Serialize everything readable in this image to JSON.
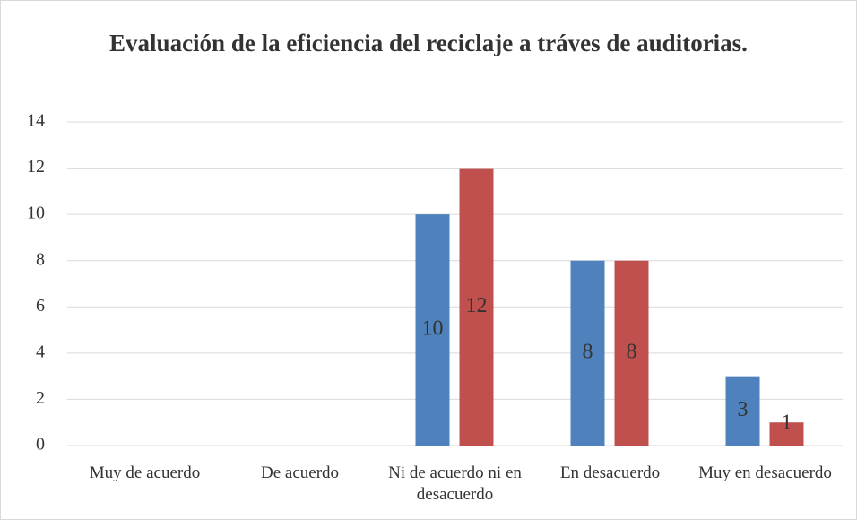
{
  "chart_data": {
    "type": "bar",
    "title": "Evaluación de la eficiencia del reciclaje a tráves de auditorias.",
    "categories": [
      "Muy de acuerdo",
      "De acuerdo",
      "Ni de acuerdo ni en desacuerdo",
      "En desacuerdo",
      "Muy en desacuerdo"
    ],
    "series": [
      {
        "color": "#4f81bd",
        "values": [
          null,
          null,
          10,
          8,
          3
        ]
      },
      {
        "color": "#c0504d",
        "values": [
          null,
          null,
          12,
          8,
          1
        ]
      }
    ],
    "ylim": [
      0,
      14
    ],
    "yticks": [
      0,
      2,
      4,
      6,
      8,
      10,
      12,
      14
    ],
    "grid": true
  }
}
